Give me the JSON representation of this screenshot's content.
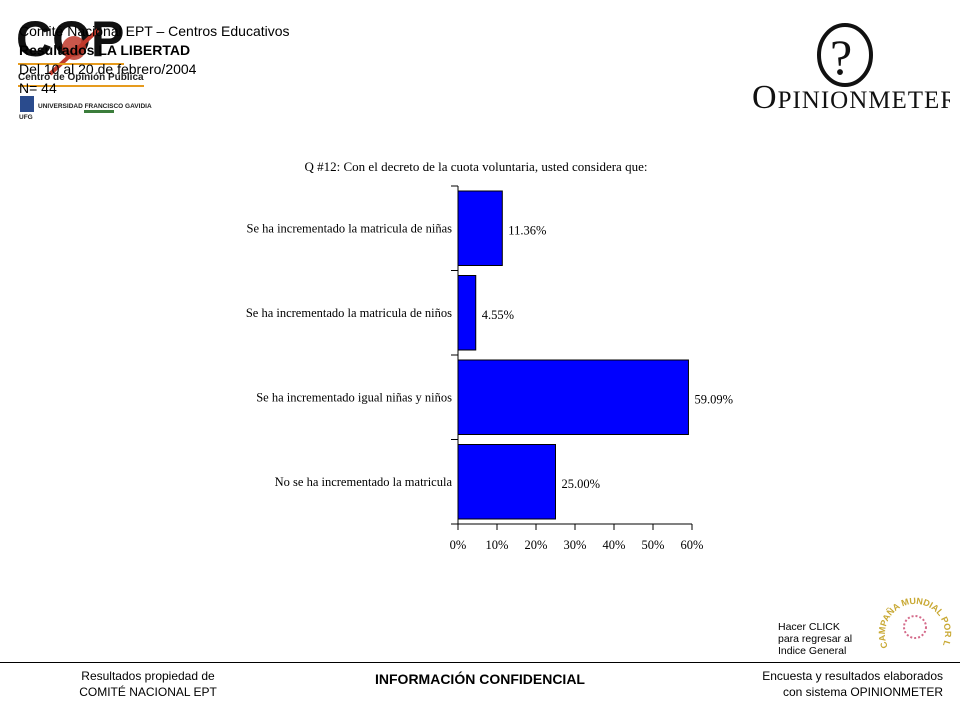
{
  "header": {
    "committee": "Comité Nacional EPT – Centros Educativos",
    "results": "Resultados LA LIBERTAD",
    "dates": "Del 10 al 20 de febrero/2004",
    "n": "N= 44"
  },
  "cop_logo": {
    "letters": "COP",
    "subtitle": "Centro de Opinión Pública",
    "university": "UNIVERSIDAD FRANCISCO GAVIDIA",
    "ufg": "UFG"
  },
  "opinionmeter_logo": {
    "symbol": "?",
    "initial": "O",
    "rest": "PINIONMETER"
  },
  "chart_data": {
    "type": "bar",
    "orientation": "horizontal",
    "title": "Q #12: Con el decreto de la cuota voluntaria, usted considera que:",
    "categories": [
      "Se ha incrementado la matricula de niñas",
      "Se ha incrementado la matricula de niños",
      "Se ha incrementado igual niñas y niños",
      "No se ha incrementado la matricula"
    ],
    "values": [
      11.36,
      4.55,
      59.09,
      25.0
    ],
    "value_labels": [
      "11.36%",
      "4.55%",
      "59.09%",
      "25.00%"
    ],
    "xlim": [
      0,
      60
    ],
    "xticks": [
      0,
      10,
      20,
      30,
      40,
      50,
      60
    ],
    "xtick_labels": [
      "0%",
      "10%",
      "20%",
      "30%",
      "40%",
      "50%",
      "60%"
    ],
    "bar_color": "#0000ff",
    "grid": false
  },
  "footer": {
    "click": [
      "Hacer CLICK",
      "para regresar al",
      "Indice General"
    ],
    "left": [
      "Resultados propiedad de",
      "COMITÉ NACIONAL EPT"
    ],
    "center": "INFORMACIÓN CONFIDENCIAL",
    "right": [
      "Encuesta y resultados elaborados",
      "con sistema OPINIONMETER"
    ]
  },
  "campaign_logo": {
    "text": "CAMPAÑA MUNDIAL POR LA EDUCACIÓN",
    "color": "#c8a832"
  }
}
